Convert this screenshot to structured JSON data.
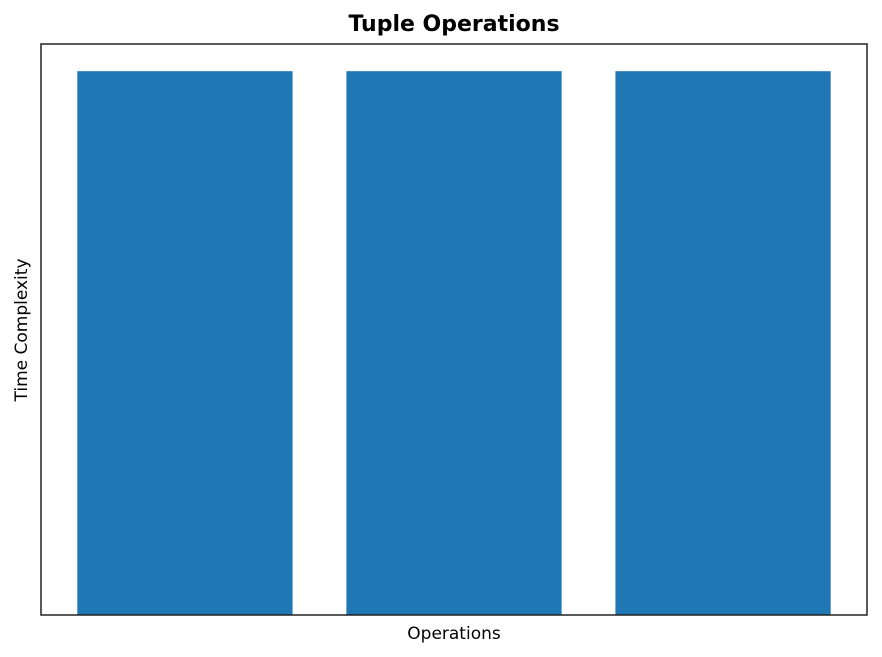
{
  "chart_data": {
    "type": "bar",
    "title": "Tuple Operations",
    "x_label": "Operations",
    "y_label": "Time Complexity",
    "categories": [
      null,
      null,
      null
    ],
    "values": [
      1,
      1,
      1
    ],
    "color": "#1f77b4",
    "ylim": [
      0,
      1.05
    ]
  }
}
